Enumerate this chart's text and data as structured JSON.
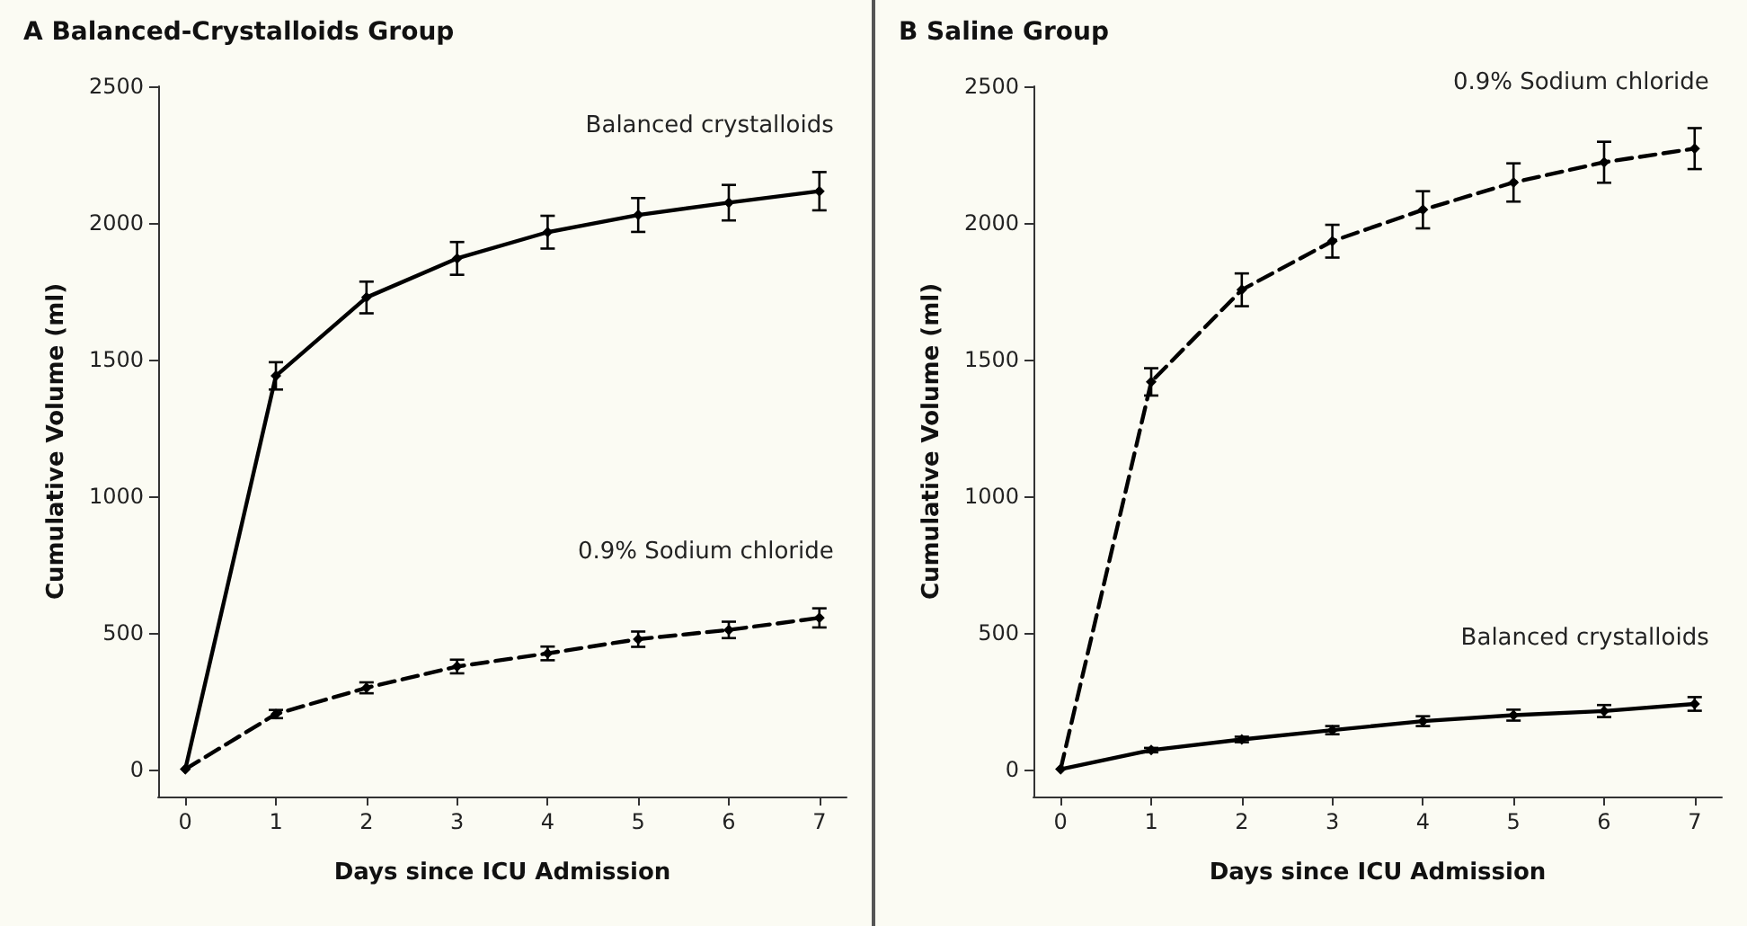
{
  "chart_data": [
    {
      "type": "line",
      "title": "A Balanced-Crystalloids Group",
      "xlabel": "Days since ICU Admission",
      "ylabel": "Cumulative Volume (ml)",
      "x": [
        0,
        1,
        2,
        3,
        4,
        5,
        6,
        7
      ],
      "xlim": [
        -0.3,
        7.3
      ],
      "xticks": [
        0,
        1,
        2,
        3,
        4,
        5,
        6,
        7
      ],
      "ylim": [
        -100,
        2500
      ],
      "yticks": [
        0,
        500,
        1000,
        1500,
        2000,
        2500
      ],
      "grid": false,
      "legend": false,
      "marker": "diamond",
      "series": [
        {
          "name": "Balanced crystalloids",
          "color": "#000000",
          "line_style": "solid",
          "values": [
            0,
            1440,
            1727,
            1870,
            1966,
            2029,
            2074,
            2116
          ],
          "errors": [
            null,
            50,
            58,
            60,
            60,
            62,
            65,
            70
          ]
        },
        {
          "name": "0.9% Sodium chloride",
          "color": "#000000",
          "line_style": "dashed",
          "values": [
            0,
            202,
            298,
            376,
            424,
            476,
            510,
            554
          ],
          "errors": [
            null,
            15,
            20,
            25,
            25,
            28,
            30,
            35
          ]
        }
      ]
    },
    {
      "type": "line",
      "title": "B Saline Group",
      "xlabel": "Days since ICU Admission",
      "ylabel": "Cumulative Volume (ml)",
      "x": [
        0,
        1,
        2,
        3,
        4,
        5,
        6,
        7
      ],
      "xlim": [
        -0.3,
        7.3
      ],
      "xticks": [
        0,
        1,
        2,
        3,
        4,
        5,
        6,
        7
      ],
      "ylim": [
        -100,
        2500
      ],
      "yticks": [
        0,
        500,
        1000,
        1500,
        2000,
        2500
      ],
      "grid": false,
      "legend": false,
      "marker": "diamond",
      "series": [
        {
          "name": "0.9% Sodium chloride",
          "color": "#000000",
          "line_style": "dashed",
          "values": [
            0,
            1418,
            1755,
            1933,
            2048,
            2148,
            2222,
            2272
          ],
          "errors": [
            null,
            50,
            60,
            60,
            68,
            70,
            75,
            75
          ]
        },
        {
          "name": "Balanced crystalloids",
          "color": "#000000",
          "line_style": "solid",
          "values": [
            0,
            70,
            109,
            143,
            176,
            198,
            213,
            239
          ],
          "errors": [
            null,
            8,
            10,
            15,
            18,
            20,
            22,
            25
          ]
        }
      ]
    }
  ]
}
